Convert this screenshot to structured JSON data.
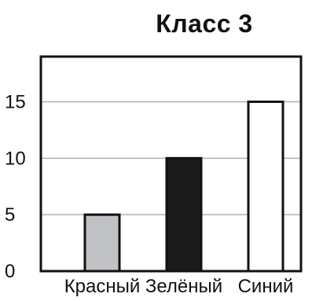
{
  "chart_data": {
    "type": "bar",
    "title": "Класс 3",
    "categories": [
      "Красный",
      "Зелёный",
      "Синий"
    ],
    "values": [
      5,
      10,
      15
    ],
    "colors": [
      "#bfc1c4",
      "#1a1a1a",
      "#ffffff"
    ],
    "ylim": [
      0,
      19
    ],
    "yticks": [
      0,
      5,
      10,
      15
    ],
    "grid": true,
    "xlabel": "",
    "ylabel": ""
  }
}
